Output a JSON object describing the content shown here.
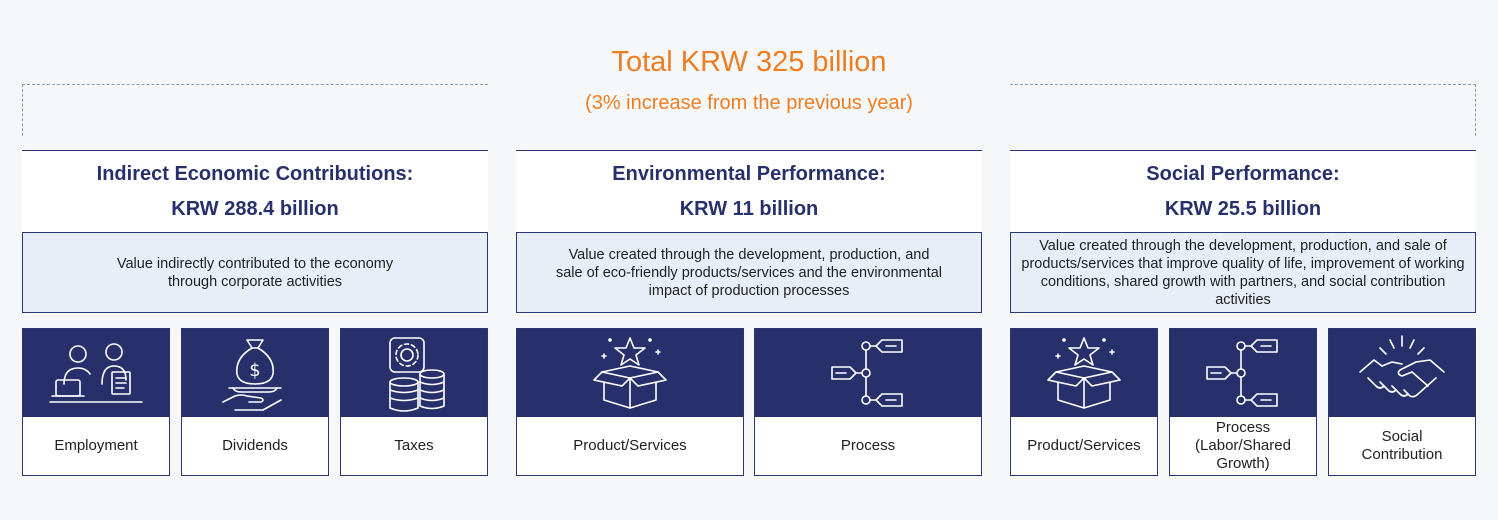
{
  "total": {
    "title": "Total KRW 325 billion",
    "subtitle": "(3% increase from the previous year)"
  },
  "sections": [
    {
      "title": "Indirect Economic Contributions:",
      "amount": "KRW 288.4 billion",
      "description": "Value indirectly contributed to the economy through corporate activities",
      "items": [
        {
          "label": "Employment",
          "icon": "people-at-desk-icon"
        },
        {
          "label": "Dividends",
          "icon": "money-bag-hand-icon"
        },
        {
          "label": "Taxes",
          "icon": "gear-coins-icon"
        }
      ]
    },
    {
      "title": "Environmental Performance:",
      "amount": "KRW 11 billion",
      "description": "Value created through the development, production, and sale of eco-friendly products/services and the environmental impact of production processes",
      "items": [
        {
          "label": "Product/Services",
          "icon": "open-box-star-icon"
        },
        {
          "label": "Process",
          "icon": "process-flow-icon"
        }
      ]
    },
    {
      "title": "Social Performance:",
      "amount": "KRW 25.5 billion",
      "description": "Value created through the development, production, and sale of products/services that improve quality of life, improvement of working conditions, shared growth with partners, and social contribution activities",
      "items": [
        {
          "label": "Product/Services",
          "icon": "open-box-star-icon"
        },
        {
          "label": "Process (Labor/Shared Growth)",
          "icon": "process-flow-icon"
        },
        {
          "label": "Social Contribution",
          "icon": "handshake-icon"
        }
      ]
    }
  ],
  "colors": {
    "accent": "#ee7d22",
    "navy": "#27306b",
    "desc_bg": "#e8eef8"
  }
}
